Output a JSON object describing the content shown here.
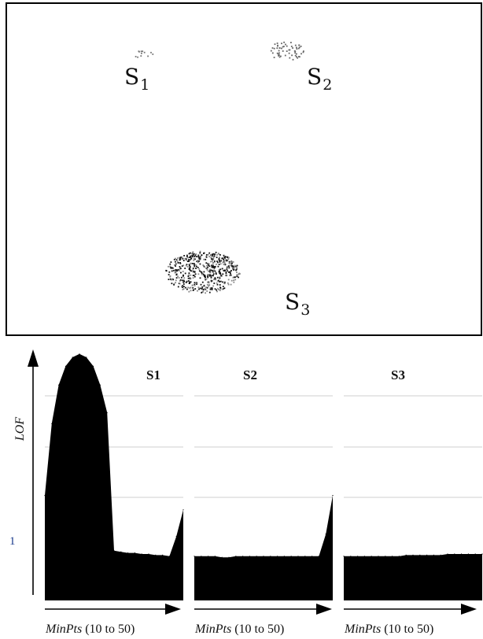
{
  "scatter": {
    "clusters": [
      {
        "name": "S",
        "sub": "1",
        "density": "sparse",
        "points": 12
      },
      {
        "name": "S",
        "sub": "2",
        "density": "medium",
        "points": 60
      },
      {
        "name": "S",
        "sub": "3",
        "density": "dense",
        "points": 520
      }
    ]
  },
  "chart_data": {
    "type": "area",
    "ylabel": "LOF",
    "yticks": [
      {
        "value": 1,
        "label": "1"
      }
    ],
    "ylim": [
      0.6,
      2.9
    ],
    "grid": true,
    "panels": [
      {
        "title": "S1",
        "xlabel_italic": "MinPts",
        "xlabel_rest": " (10 to 50)",
        "x": [
          10,
          12,
          14,
          16,
          18,
          20,
          22,
          24,
          26,
          28,
          30,
          32,
          34,
          36,
          38,
          40,
          42,
          44,
          46,
          48,
          50
        ],
        "values": [
          1.55,
          2.2,
          2.55,
          2.72,
          2.8,
          2.83,
          2.8,
          2.72,
          2.55,
          2.3,
          1.05,
          1.04,
          1.03,
          1.03,
          1.02,
          1.02,
          1.01,
          1.01,
          1.0,
          1.18,
          1.42
        ]
      },
      {
        "title": "S2",
        "xlabel_italic": "MinPts",
        "xlabel_rest": " (10 to 50)",
        "x": [
          10,
          12,
          14,
          16,
          18,
          20,
          22,
          24,
          26,
          28,
          30,
          32,
          34,
          36,
          38,
          40,
          42,
          44,
          46,
          48,
          50
        ],
        "values": [
          1.0,
          1.0,
          1.0,
          1.0,
          0.99,
          0.99,
          1.0,
          1.0,
          1.0,
          1.0,
          1.0,
          1.0,
          1.0,
          1.0,
          1.0,
          1.0,
          1.0,
          1.0,
          1.0,
          1.2,
          1.55
        ]
      },
      {
        "title": "S3",
        "xlabel_italic": "MinPts",
        "xlabel_rest": " (10 to 50)",
        "x": [
          10,
          12,
          14,
          16,
          18,
          20,
          22,
          24,
          26,
          28,
          30,
          32,
          34,
          36,
          38,
          40,
          42,
          44,
          46,
          48,
          50
        ],
        "values": [
          1.0,
          1.0,
          1.0,
          1.0,
          1.0,
          1.0,
          1.0,
          1.0,
          1.0,
          1.01,
          1.01,
          1.01,
          1.01,
          1.01,
          1.01,
          1.02,
          1.02,
          1.02,
          1.02,
          1.02,
          1.02
        ]
      }
    ]
  }
}
